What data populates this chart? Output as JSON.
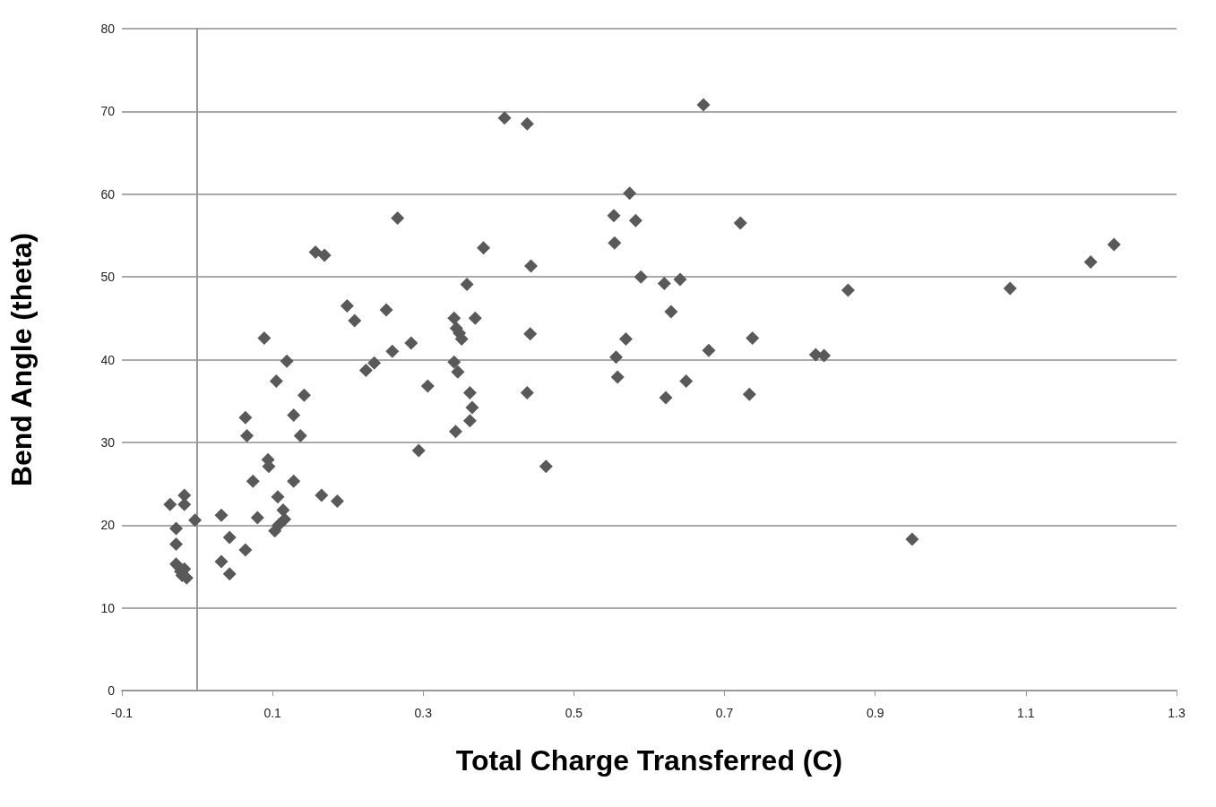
{
  "chart_data": {
    "type": "scatter",
    "xlabel": "Total Charge Transferred (C)",
    "ylabel": "Bend Angle (theta)",
    "xlim": [
      -0.1,
      1.3
    ],
    "xticks": [
      -0.1,
      0.1,
      0.3,
      0.5,
      0.7,
      0.9,
      1.1,
      1.3
    ],
    "ylim": [
      0,
      80
    ],
    "yticks": [
      0,
      10,
      20,
      30,
      40,
      50,
      60,
      70,
      80
    ],
    "grid": "y",
    "marker": "diamond",
    "series": [
      {
        "color": "#595959",
        "x": [
          -0.036,
          -0.017,
          -0.017,
          -0.003,
          -0.028,
          -0.028,
          -0.028,
          -0.022,
          -0.017,
          -0.014,
          -0.02,
          0.032,
          0.043,
          0.032,
          0.043,
          0.064,
          0.064,
          0.066,
          0.074,
          0.08,
          0.089,
          0.094,
          0.095,
          0.105,
          0.119,
          0.107,
          0.114,
          0.116,
          0.103,
          0.108,
          0.128,
          0.137,
          0.142,
          0.128,
          0.165,
          0.186,
          0.157,
          0.169,
          0.199,
          0.209,
          0.251,
          0.224,
          0.235,
          0.259,
          0.284,
          0.306,
          0.294,
          0.266,
          0.343,
          0.341,
          0.346,
          0.341,
          0.344,
          0.348,
          0.351,
          0.358,
          0.369,
          0.362,
          0.365,
          0.362,
          0.38,
          0.408,
          0.438,
          0.443,
          0.442,
          0.438,
          0.463,
          0.574,
          0.553,
          0.582,
          0.554,
          0.589,
          0.62,
          0.641,
          0.629,
          0.569,
          0.556,
          0.558,
          0.622,
          0.649,
          0.672,
          0.679,
          0.721,
          0.737,
          0.733,
          0.821,
          0.832,
          0.864,
          0.949,
          1.079,
          1.186,
          1.217
        ],
        "values": [
          22.5,
          23.6,
          22.5,
          20.6,
          19.6,
          17.7,
          15.3,
          14.4,
          14.7,
          13.6,
          13.9,
          21.2,
          18.5,
          15.6,
          14.1,
          17.0,
          33.0,
          30.8,
          25.3,
          20.9,
          42.6,
          27.9,
          27.1,
          37.4,
          39.8,
          23.4,
          21.8,
          20.7,
          19.3,
          20.0,
          33.3,
          30.8,
          35.7,
          25.3,
          23.6,
          22.9,
          53.0,
          52.6,
          46.5,
          44.7,
          46.0,
          38.7,
          39.6,
          41.0,
          42.0,
          36.8,
          29.0,
          57.1,
          31.3,
          39.7,
          38.5,
          45.0,
          43.8,
          43.2,
          42.5,
          49.1,
          45.0,
          36.0,
          34.2,
          32.6,
          53.5,
          69.2,
          68.5,
          51.3,
          43.1,
          36.0,
          27.1,
          60.1,
          57.4,
          56.8,
          54.1,
          50.0,
          49.2,
          49.7,
          45.8,
          42.5,
          40.3,
          37.9,
          35.4,
          37.4,
          70.8,
          41.1,
          56.5,
          42.6,
          35.8,
          40.6,
          40.5,
          48.4,
          18.3,
          48.6,
          51.8,
          53.9
        ]
      }
    ]
  }
}
